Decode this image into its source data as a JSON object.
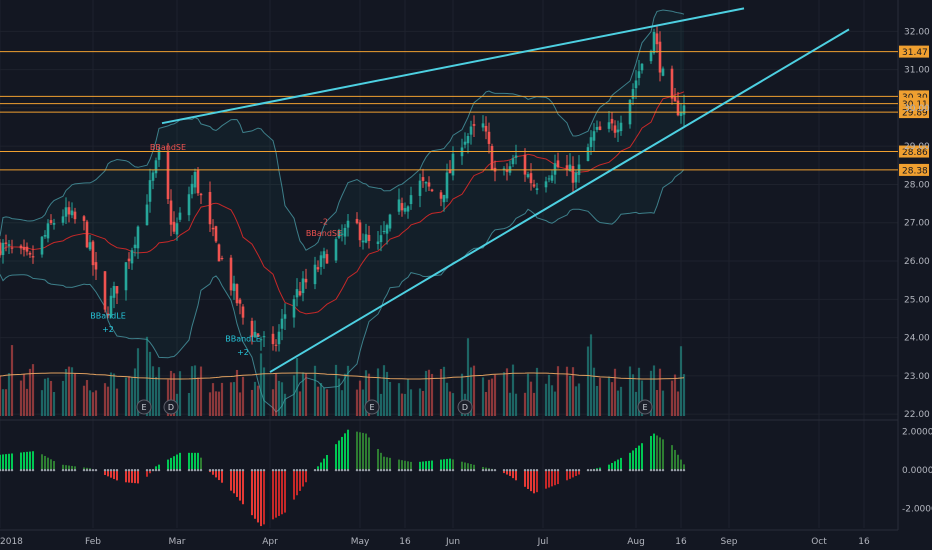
{
  "chart_data": {
    "type": "candlestick",
    "title": "",
    "price_axis": {
      "range": [
        21.9,
        32.4
      ],
      "ticks": [
        "32.00",
        "31.00",
        "30.00",
        "29.00",
        "28.00",
        "27.00",
        "26.00",
        "25.00",
        "24.00",
        "23.00",
        "22.00"
      ]
    },
    "oscillator_axis": {
      "range": [
        -3.0,
        2.5
      ],
      "ticks": [
        "2.0000",
        "0.0000",
        "-2.0000"
      ]
    },
    "time_axis": {
      "labels": [
        {
          "label": "2018",
          "day": 0
        },
        {
          "label": "Feb",
          "day": 31
        },
        {
          "label": "Mar",
          "day": 59
        },
        {
          "label": "Apr",
          "day": 90
        },
        {
          "label": "May",
          "day": 120
        },
        {
          "label": "16",
          "day": 135
        },
        {
          "label": "Jun",
          "day": 151
        },
        {
          "label": "Jul",
          "day": 181
        },
        {
          "label": "Aug",
          "day": 212
        },
        {
          "label": "16",
          "day": 227
        },
        {
          "label": "Sep",
          "day": 243
        },
        {
          "label": "Oct",
          "day": 273
        },
        {
          "label": "16",
          "day": 288
        }
      ]
    },
    "price_levels": [
      {
        "value": 31.47,
        "label": "31.47"
      },
      {
        "value": 30.3,
        "label": "30.30"
      },
      {
        "value": 30.11,
        "label": "30.11"
      },
      {
        "value": 29.89,
        "label": "29.89"
      },
      {
        "value": 28.86,
        "label": "28.86"
      },
      {
        "value": 28.38,
        "label": "28.38"
      }
    ],
    "trendlines": [
      {
        "from": {
          "day": 54,
          "price": 29.6
        },
        "to": {
          "day": 248,
          "price": 32.6
        }
      },
      {
        "from": {
          "day": 90,
          "price": 23.1
        },
        "to": {
          "day": 283,
          "price": 32.05
        }
      }
    ],
    "annotations": [
      {
        "text": "BBandSE",
        "day": 56,
        "price": 28.9,
        "color": "#ef5350"
      },
      {
        "text": "BBandSE",
        "day": 108,
        "price": 26.65,
        "color": "#ef5350"
      },
      {
        "text": "-2",
        "day": 108,
        "price": 26.95,
        "color": "#ef5350"
      },
      {
        "text": "BBandLE",
        "day": 36,
        "price": 24.5,
        "color": "#26c6da"
      },
      {
        "text": "+2",
        "day": 36,
        "price": 24.15,
        "color": "#26c6da"
      },
      {
        "text": "BBandLE",
        "day": 81,
        "price": 23.9,
        "color": "#26c6da"
      },
      {
        "text": "+2",
        "day": 81,
        "price": 23.55,
        "color": "#26c6da"
      }
    ],
    "event_markers": [
      {
        "text": "E",
        "day": 48
      },
      {
        "text": "D",
        "day": 57
      },
      {
        "text": "E",
        "day": 124
      },
      {
        "text": "D",
        "day": 155
      },
      {
        "text": "E",
        "day": 215
      }
    ],
    "anchors": [
      {
        "day": 0,
        "price": 26.4
      },
      {
        "day": 10,
        "price": 26.0
      },
      {
        "day": 20,
        "price": 27.3
      },
      {
        "day": 28,
        "price": 26.9
      },
      {
        "day": 35,
        "price": 24.6
      },
      {
        "day": 42,
        "price": 25.9
      },
      {
        "day": 48,
        "price": 27.4
      },
      {
        "day": 53,
        "price": 28.7
      },
      {
        "day": 58,
        "price": 26.7
      },
      {
        "day": 65,
        "price": 28.2
      },
      {
        "day": 70,
        "price": 26.8
      },
      {
        "day": 76,
        "price": 25.6
      },
      {
        "day": 82,
        "price": 24.3
      },
      {
        "day": 87,
        "price": 24.0
      },
      {
        "day": 91,
        "price": 23.6
      },
      {
        "day": 96,
        "price": 24.9
      },
      {
        "day": 104,
        "price": 25.6
      },
      {
        "day": 110,
        "price": 26.3
      },
      {
        "day": 118,
        "price": 27.0
      },
      {
        "day": 125,
        "price": 26.2
      },
      {
        "day": 132,
        "price": 27.3
      },
      {
        "day": 140,
        "price": 28.0
      },
      {
        "day": 147,
        "price": 27.7
      },
      {
        "day": 154,
        "price": 29.2
      },
      {
        "day": 161,
        "price": 29.5
      },
      {
        "day": 166,
        "price": 28.0
      },
      {
        "day": 172,
        "price": 28.7
      },
      {
        "day": 178,
        "price": 28.0
      },
      {
        "day": 185,
        "price": 28.5
      },
      {
        "day": 192,
        "price": 28.2
      },
      {
        "day": 198,
        "price": 29.3
      },
      {
        "day": 205,
        "price": 29.5
      },
      {
        "day": 210,
        "price": 30.3
      },
      {
        "day": 214,
        "price": 31.2
      },
      {
        "day": 218,
        "price": 31.9
      },
      {
        "day": 221,
        "price": 30.8
      },
      {
        "day": 224,
        "price": 30.0
      },
      {
        "day": 228,
        "price": 30.0
      }
    ],
    "oscillator_anchors": [
      {
        "day": 0,
        "value": 0.8
      },
      {
        "day": 12,
        "value": 1.0
      },
      {
        "day": 20,
        "value": 0.3
      },
      {
        "day": 30,
        "value": 0.1
      },
      {
        "day": 40,
        "value": -0.6
      },
      {
        "day": 47,
        "value": -0.7
      },
      {
        "day": 52,
        "value": 0.2
      },
      {
        "day": 60,
        "value": 0.9
      },
      {
        "day": 66,
        "value": 0.9
      },
      {
        "day": 70,
        "value": -0.1
      },
      {
        "day": 78,
        "value": -1.2
      },
      {
        "day": 87,
        "value": -2.9
      },
      {
        "day": 95,
        "value": -2.2
      },
      {
        "day": 103,
        "value": -0.4
      },
      {
        "day": 108,
        "value": 0.6
      },
      {
        "day": 116,
        "value": 2.1
      },
      {
        "day": 122,
        "value": 1.9
      },
      {
        "day": 128,
        "value": 0.7
      },
      {
        "day": 138,
        "value": 0.4
      },
      {
        "day": 150,
        "value": 0.6
      },
      {
        "day": 160,
        "value": 0.2
      },
      {
        "day": 166,
        "value": 0.0
      },
      {
        "day": 170,
        "value": -0.3
      },
      {
        "day": 178,
        "value": -1.2
      },
      {
        "day": 188,
        "value": -0.6
      },
      {
        "day": 196,
        "value": 0.0
      },
      {
        "day": 202,
        "value": 0.2
      },
      {
        "day": 210,
        "value": 0.9
      },
      {
        "day": 218,
        "value": 1.9
      },
      {
        "day": 224,
        "value": 1.3
      },
      {
        "day": 228,
        "value": 0.3
      }
    ],
    "grid": true
  }
}
